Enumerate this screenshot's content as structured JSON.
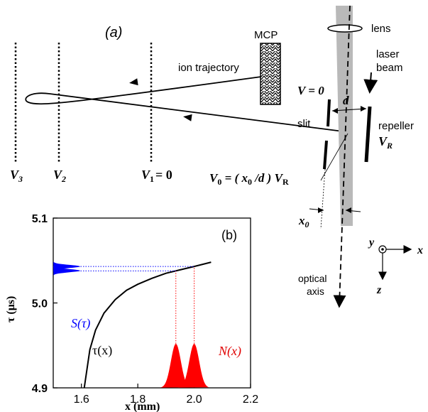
{
  "panel_a": {
    "label": "(a)",
    "mcp": "MCP",
    "lens": "lens",
    "laser_beam_line1": "laser",
    "laser_beam_line2": "beam",
    "ion_trajectory": "ion trajectory",
    "v_zero": "V = 0",
    "d": "d",
    "slit": "slit",
    "repeller": "repeller",
    "v_r": "V",
    "v_r_sub": "R",
    "v3": "V",
    "v3_sub": "3",
    "v2": "V",
    "v2_sub": "2",
    "v1_eq": "V",
    "v1_sub": "1",
    "v1_tail": "= 0",
    "v0_formula": "V",
    "v0_sub": "0",
    "v0_tail": " = ( x",
    "v0_tail_sub": "0",
    "v0_tail2": " /d ) V",
    "v0_tail2_sub": "R",
    "x0": "x",
    "x0_sub": "0",
    "optical_axis_line1": "optical",
    "optical_axis_line2": "axis",
    "axis_y": "y",
    "axis_x": "x",
    "axis_z": "z"
  },
  "chart_data": {
    "type": "line",
    "panel_label": "(b)",
    "xlabel": "x (mm)",
    "ylabel": "τ (μs)",
    "xlim": [
      1.5,
      2.2
    ],
    "ylim": [
      4.9,
      5.1
    ],
    "x_ticks": [
      "1.6",
      "1.8",
      "2.0",
      "2.2"
    ],
    "y_ticks": [
      "4.9",
      "5.0",
      "5.1"
    ],
    "series": [
      {
        "name": "τ(x)",
        "color": "#000000",
        "x": [
          1.61,
          1.63,
          1.65,
          1.68,
          1.72,
          1.76,
          1.8,
          1.85,
          1.9,
          1.95,
          2.0,
          2.06
        ],
        "y": [
          4.9,
          4.945,
          4.968,
          4.988,
          5.004,
          5.015,
          5.022,
          5.029,
          5.035,
          5.039,
          5.043,
          5.048
        ]
      }
    ],
    "n_x": {
      "label": "N(x)",
      "color": "#ff0000",
      "peaks_x": [
        1.935,
        2.0
      ],
      "peak_height": 4.952
    },
    "s_tau": {
      "label": "S(τ)",
      "color": "#0000ff",
      "peaks_tau": [
        5.038,
        5.043
      ]
    }
  }
}
